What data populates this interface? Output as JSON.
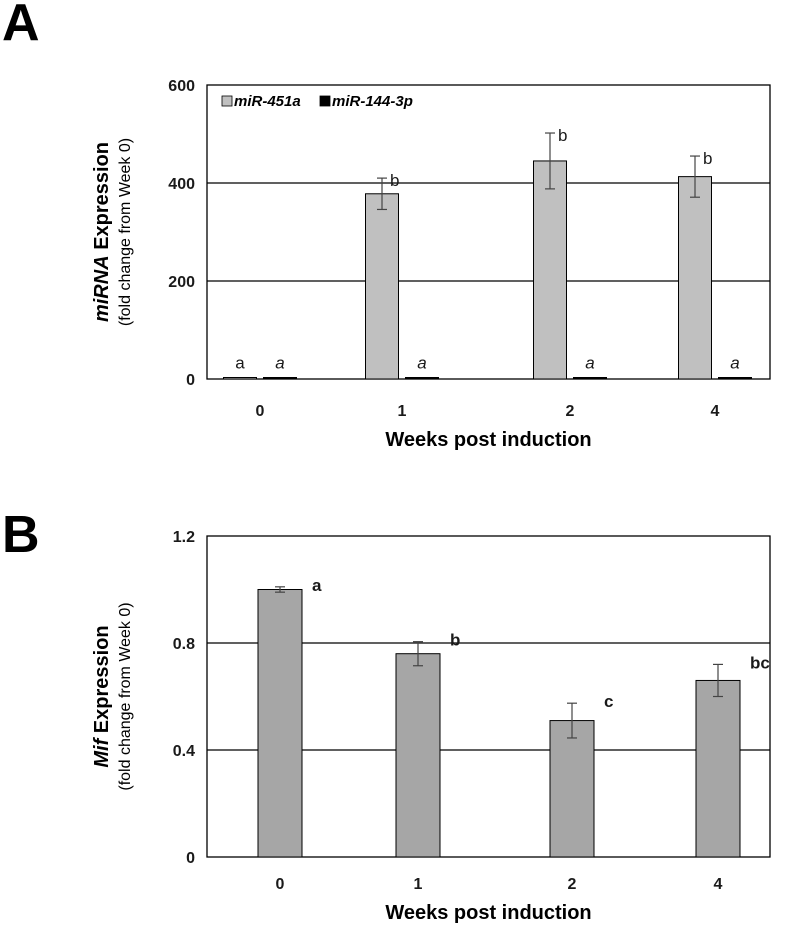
{
  "chart_data": [
    {
      "panel": "A",
      "type": "bar",
      "categories": [
        "0",
        "1",
        "2",
        "4"
      ],
      "xlabel": "Weeks post induction",
      "ylabel_italic": "miRNA",
      "ylabel_rest": " Expression",
      "ylabel_sub": "(fold change from Week 0)",
      "ylim": [
        0,
        600
      ],
      "yticks": [
        0,
        200,
        400,
        600
      ],
      "gridlines": [
        200,
        400
      ],
      "series": [
        {
          "name": "miR-451a",
          "color": "#c0c0c0",
          "values": [
            1,
            378,
            445,
            413
          ],
          "errors": [
            0,
            32,
            57,
            42
          ],
          "letters": [
            "a",
            "b",
            "b",
            "b"
          ],
          "letters_italic": false
        },
        {
          "name": "miR-144-3p",
          "color": "#000000",
          "values": [
            1,
            1,
            1,
            1
          ],
          "errors": [
            0,
            0,
            0,
            0
          ],
          "letters": [
            "a",
            "a",
            "a",
            "a"
          ],
          "letters_italic": true
        }
      ]
    },
    {
      "panel": "B",
      "type": "bar",
      "categories": [
        "0",
        "1",
        "2",
        "4"
      ],
      "xlabel": "Weeks post induction",
      "ylabel_italic": "Mif",
      "ylabel_rest": " Expression",
      "ylabel_sub": "(fold change from Week 0)",
      "ylim": [
        0,
        1.2
      ],
      "yticks": [
        "0",
        "0.4",
        "0.8",
        "1.2"
      ],
      "gridlines": [
        0.4,
        0.8
      ],
      "series": [
        {
          "name": "Mif",
          "color": "#a6a6a6",
          "values": [
            1.0,
            0.76,
            0.51,
            0.66
          ],
          "errors": [
            0.01,
            0.045,
            0.065,
            0.06
          ],
          "letters": [
            "a",
            "b",
            "c",
            "bc"
          ],
          "letters_italic": false
        }
      ]
    }
  ]
}
